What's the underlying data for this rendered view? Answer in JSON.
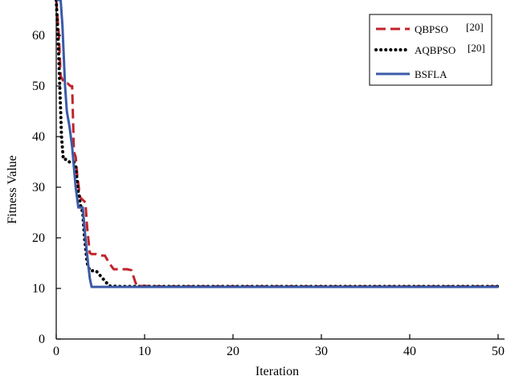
{
  "chart_data": {
    "type": "line",
    "title": "",
    "xlabel": "Iteration",
    "ylabel": "Fitness Value",
    "xlim": [
      0,
      50
    ],
    "ylim": [
      0,
      67
    ],
    "xticks": [
      0,
      10,
      20,
      30,
      40,
      50
    ],
    "yticks": [
      0,
      10,
      20,
      30,
      40,
      50,
      60
    ],
    "grid": false,
    "legend_position": "top-right",
    "series": [
      {
        "name": "QBPSO",
        "ref": "[20]",
        "color": "#c0242a",
        "style": "dashed",
        "x": [
          0,
          0.3,
          0.5,
          0.8,
          1.0,
          1.3,
          1.6,
          1.8,
          2.0,
          2.2,
          2.4,
          2.7,
          3.0,
          3.3,
          3.5,
          3.8,
          4.0,
          4.5,
          5.0,
          5.5,
          6.0,
          6.5,
          7.0,
          7.5,
          8.0,
          8.5,
          9.0,
          9.3,
          10.0,
          12.0,
          20.0,
          30.0,
          40.0,
          50.0
        ],
        "values": [
          67,
          60,
          52,
          51,
          50.5,
          50.5,
          50,
          50,
          37,
          36,
          32,
          28,
          27.5,
          27,
          22,
          17,
          16.8,
          16.8,
          16.5,
          16.5,
          15,
          13.8,
          13.8,
          13.8,
          13.8,
          13.6,
          11,
          10.5,
          10.5,
          10.4,
          10.4,
          10.4,
          10.4,
          10.4
        ]
      },
      {
        "name": "AQBPSO",
        "ref": "[20]",
        "color": "#000000",
        "style": "dotted",
        "x": [
          0,
          0.2,
          0.4,
          0.6,
          0.8,
          1.0,
          1.2,
          1.5,
          1.8,
          2.0,
          2.2,
          2.5,
          2.8,
          3.0,
          3.2,
          3.5,
          3.8,
          4.0,
          4.5,
          5.0,
          5.5,
          6.0,
          7.0,
          8.0,
          10.0,
          20.0,
          30.0,
          40.0,
          50.0
        ],
        "values": [
          67,
          60,
          50,
          40,
          35.5,
          35.5,
          35.5,
          35,
          35,
          35,
          34,
          29,
          26,
          25,
          20,
          15,
          13.5,
          13.5,
          13.5,
          12.5,
          11.5,
          10.5,
          10.4,
          10.4,
          10.4,
          10.4,
          10.4,
          10.4,
          10.4
        ]
      },
      {
        "name": "BSFLA",
        "ref": "",
        "color": "#3b5aa8",
        "style": "solid",
        "x": [
          0,
          0.5,
          0.7,
          1.0,
          1.2,
          1.5,
          1.8,
          2.0,
          2.2,
          2.5,
          2.8,
          3.0,
          3.3,
          3.6,
          3.8,
          4.0,
          4.2,
          5.0,
          10.0,
          20.0,
          30.0,
          40.0,
          50.0
        ],
        "values": [
          67,
          67,
          62,
          50,
          45,
          42,
          38,
          34,
          30,
          26,
          26,
          26,
          20,
          15,
          12,
          10.3,
          10.3,
          10.3,
          10.3,
          10.3,
          10.3,
          10.3,
          10.3
        ]
      }
    ]
  }
}
